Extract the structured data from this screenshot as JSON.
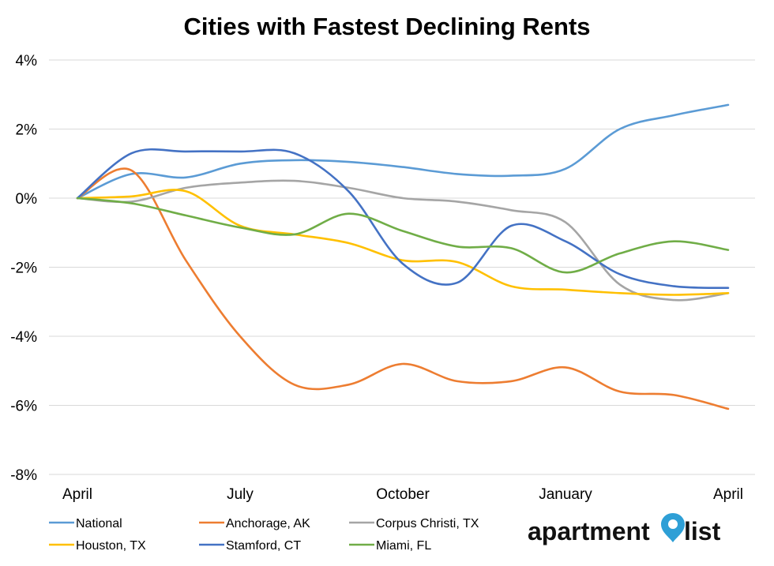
{
  "chart_data": {
    "type": "line",
    "title": "Cities with Fastest Declining Rents",
    "xlabel": "",
    "ylabel": "",
    "x": [
      0,
      1,
      2,
      3,
      4,
      5,
      6,
      7,
      8,
      9,
      10,
      11,
      12
    ],
    "x_tick_labels": [
      "April",
      "July",
      "October",
      "January",
      "April"
    ],
    "x_tick_positions": [
      0,
      3,
      6,
      9,
      12
    ],
    "ylim": [
      -8,
      4
    ],
    "y_ticks": [
      4,
      2,
      0,
      -2,
      -4,
      -6,
      -8
    ],
    "y_tick_labels": [
      "4%",
      "2%",
      "0%",
      "-2%",
      "-4%",
      "-6%",
      "-8%"
    ],
    "grid": true,
    "legend_position": "bottom",
    "series": [
      {
        "name": "National",
        "color": "#5b9bd5",
        "values": [
          0,
          0.7,
          0.6,
          1.0,
          1.1,
          1.05,
          0.9,
          0.7,
          0.65,
          0.85,
          2.0,
          2.4,
          2.7
        ]
      },
      {
        "name": "Anchorage, AK",
        "color": "#ed7d31",
        "values": [
          0,
          0.8,
          -1.8,
          -4.0,
          -5.4,
          -5.4,
          -4.8,
          -5.3,
          -5.3,
          -4.9,
          -5.6,
          -5.7,
          -6.1
        ]
      },
      {
        "name": "Corpus Christi, TX",
        "color": "#a5a5a5",
        "values": [
          0,
          -0.1,
          0.3,
          0.45,
          0.5,
          0.3,
          0.0,
          -0.1,
          -0.35,
          -0.7,
          -2.5,
          -2.95,
          -2.75
        ]
      },
      {
        "name": "Houston, TX",
        "color": "#ffc000",
        "values": [
          0,
          0.05,
          0.2,
          -0.8,
          -1.05,
          -1.3,
          -1.8,
          -1.85,
          -2.55,
          -2.65,
          -2.75,
          -2.8,
          -2.75
        ]
      },
      {
        "name": "Stamford, CT",
        "color": "#4472c4",
        "values": [
          0,
          1.3,
          1.35,
          1.35,
          1.3,
          0.2,
          -1.9,
          -2.45,
          -0.8,
          -1.25,
          -2.2,
          -2.55,
          -2.6
        ]
      },
      {
        "name": "Miami, FL",
        "color": "#70ad47",
        "values": [
          0,
          -0.15,
          -0.5,
          -0.85,
          -1.05,
          -0.45,
          -0.95,
          -1.4,
          -1.45,
          -2.15,
          -1.6,
          -1.25,
          -1.5
        ]
      }
    ]
  },
  "logo": {
    "text_left": "apartment",
    "text_right": "list",
    "pin_color": "#2e9fd6"
  }
}
